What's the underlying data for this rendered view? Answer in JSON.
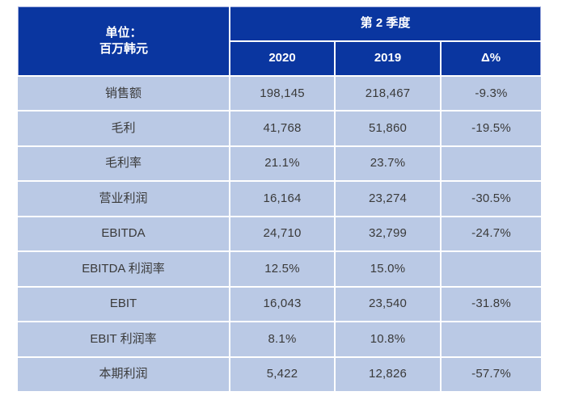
{
  "chart_data": {
    "type": "table",
    "title": "第 2 季度",
    "unit_lines": [
      "单位：",
      "百万韩元"
    ],
    "columns": [
      "2020",
      "2019",
      "Δ%"
    ],
    "rows": [
      {
        "label": "销售额",
        "values": [
          "198,145",
          "218,467",
          "-9.3%"
        ]
      },
      {
        "label": "毛利",
        "values": [
          "41,768",
          "51,860",
          "-19.5%"
        ]
      },
      {
        "label": "毛利率",
        "values": [
          "21.1%",
          "23.7%",
          ""
        ]
      },
      {
        "label": "营业利润",
        "values": [
          "16,164",
          "23,274",
          "-30.5%"
        ]
      },
      {
        "label": "EBITDA",
        "values": [
          "24,710",
          "32,799",
          "-24.7%"
        ]
      },
      {
        "label": "EBITDA 利润率",
        "values": [
          "12.5%",
          "15.0%",
          ""
        ]
      },
      {
        "label": "EBIT",
        "values": [
          "16,043",
          "23,540",
          "-31.8%"
        ]
      },
      {
        "label": "EBIT 利润率",
        "values": [
          "8.1%",
          "10.8%",
          ""
        ]
      },
      {
        "label": "本期利润",
        "values": [
          "5,422",
          "12,826",
          "-57.7%"
        ]
      }
    ],
    "colors": {
      "header_bg": "#0a36a0",
      "row_bg": "#bac9e5",
      "header_text": "#ffffff",
      "body_text": "#3a3a3a",
      "separator": "#ffffff",
      "header_outer_border": "#a3aede"
    },
    "layout": {
      "grid": "white 2px separators",
      "header_rows": 2,
      "data_rows": 9
    }
  }
}
